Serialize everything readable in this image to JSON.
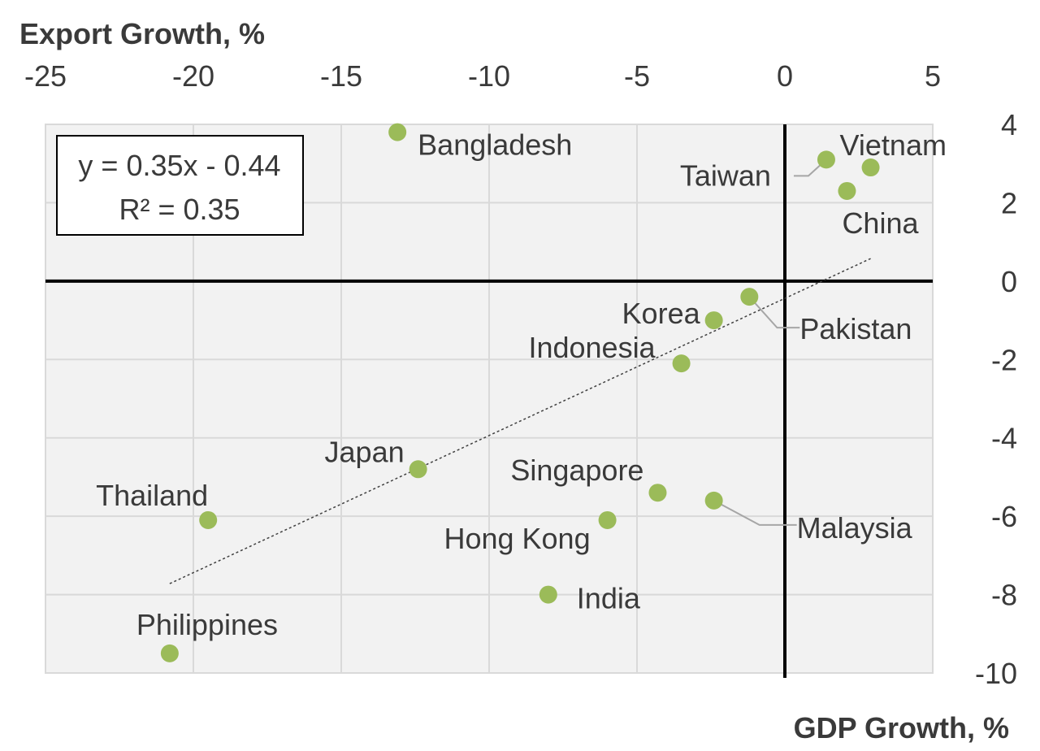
{
  "chart_data": {
    "type": "scatter",
    "xlabel": "GDP Growth, %",
    "ylabel": "Export Growth, %",
    "xlim": [
      -25,
      5
    ],
    "ylim": [
      -10,
      4
    ],
    "x_ticks": [
      "-25",
      "-20",
      "-15",
      "-10",
      "-5",
      "0",
      "5"
    ],
    "y_ticks": [
      "4",
      "2",
      "0",
      "-2",
      "-4",
      "-6",
      "-8",
      "-10"
    ],
    "x_axis_position": "top",
    "y_axis_position": "right",
    "grid": true,
    "point_color": "#9bbb59",
    "points": [
      {
        "label": "Bangladesh",
        "x": -13.1,
        "y": 3.8
      },
      {
        "label": "Vietnam",
        "x": 2.9,
        "y": 2.9
      },
      {
        "label": "Taiwan",
        "x": 1.4,
        "y": 3.1
      },
      {
        "label": "China",
        "x": 2.1,
        "y": 2.3
      },
      {
        "label": "Pakistan",
        "x": -1.2,
        "y": -0.4
      },
      {
        "label": "Korea",
        "x": -2.4,
        "y": -1.0
      },
      {
        "label": "Indonesia",
        "x": -3.5,
        "y": -2.1
      },
      {
        "label": "Japan",
        "x": -12.4,
        "y": -4.8
      },
      {
        "label": "Singapore",
        "x": -4.3,
        "y": -5.4
      },
      {
        "label": "Malaysia",
        "x": -2.4,
        "y": -5.6
      },
      {
        "label": "Thailand",
        "x": -19.5,
        "y": -6.1
      },
      {
        "label": "Hong Kong",
        "x": -6.0,
        "y": -6.1
      },
      {
        "label": "India",
        "x": -8.0,
        "y": -8.0
      },
      {
        "label": "Philippines",
        "x": -20.8,
        "y": -9.5
      }
    ],
    "trendline": {
      "equation": "y = 0.35x - 0.44",
      "r2": "R² = 0.35",
      "slope": 0.35,
      "intercept": -0.44,
      "x_range": [
        -20.8,
        2.9
      ],
      "style": "dotted"
    }
  }
}
